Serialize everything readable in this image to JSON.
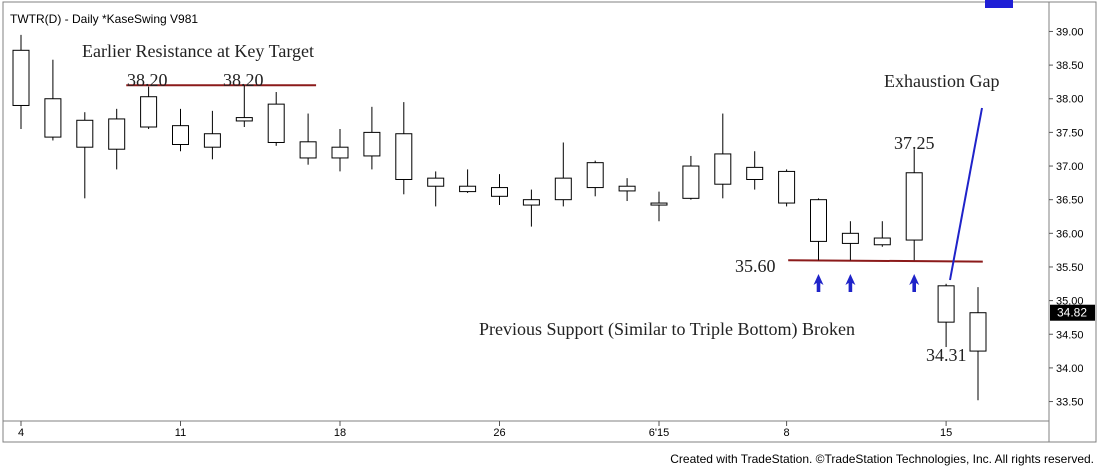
{
  "header": {
    "title": "TWTR(D) - Daily  *KaseSwing  V981"
  },
  "footer": {
    "credit": "Created with TradeStation. ©TradeStation Technologies, Inc. All rights reserved."
  },
  "chart_data": {
    "type": "candlestick",
    "ylim": [
      33.3,
      39.2
    ],
    "y_ticks": [
      "39.00",
      "38.50",
      "38.00",
      "37.50",
      "37.00",
      "36.50",
      "36.00",
      "35.50",
      "35.00",
      "34.50",
      "34.00",
      "33.50"
    ],
    "x_ticks": [
      "4",
      "11",
      "18",
      "26",
      "6'15",
      "8",
      "15"
    ],
    "x_tick_bars": [
      0,
      5,
      10,
      15,
      20,
      24,
      29
    ],
    "last_price": "34.82",
    "bars": [
      {
        "o": 37.9,
        "h": 38.95,
        "l": 37.55,
        "c": 38.72
      },
      {
        "o": 37.43,
        "h": 38.58,
        "l": 37.38,
        "c": 38.0
      },
      {
        "o": 37.28,
        "h": 37.8,
        "l": 36.52,
        "c": 37.68
      },
      {
        "o": 37.25,
        "h": 37.85,
        "l": 36.95,
        "c": 37.7
      },
      {
        "o": 37.58,
        "h": 38.18,
        "l": 37.55,
        "c": 38.03
      },
      {
        "o": 37.32,
        "h": 37.85,
        "l": 37.22,
        "c": 37.6
      },
      {
        "o": 37.28,
        "h": 37.82,
        "l": 37.1,
        "c": 37.48
      },
      {
        "o": 37.67,
        "h": 38.2,
        "l": 37.58,
        "c": 37.72
      },
      {
        "o": 37.35,
        "h": 38.1,
        "l": 37.3,
        "c": 37.92
      },
      {
        "o": 37.12,
        "h": 37.78,
        "l": 37.02,
        "c": 37.36
      },
      {
        "o": 37.12,
        "h": 37.55,
        "l": 36.92,
        "c": 37.28
      },
      {
        "o": 37.15,
        "h": 37.88,
        "l": 36.95,
        "c": 37.5
      },
      {
        "o": 36.8,
        "h": 37.95,
        "l": 36.58,
        "c": 37.48
      },
      {
        "o": 36.7,
        "h": 36.92,
        "l": 36.4,
        "c": 36.82
      },
      {
        "o": 36.62,
        "h": 36.95,
        "l": 36.6,
        "c": 36.7
      },
      {
        "o": 36.55,
        "h": 36.88,
        "l": 36.42,
        "c": 36.68
      },
      {
        "o": 36.42,
        "h": 36.65,
        "l": 36.1,
        "c": 36.5
      },
      {
        "o": 36.5,
        "h": 37.35,
        "l": 36.4,
        "c": 36.82
      },
      {
        "o": 36.68,
        "h": 37.08,
        "l": 36.55,
        "c": 37.05
      },
      {
        "o": 36.63,
        "h": 36.82,
        "l": 36.48,
        "c": 36.7
      },
      {
        "o": 36.42,
        "h": 36.62,
        "l": 36.18,
        "c": 36.45
      },
      {
        "o": 36.52,
        "h": 37.15,
        "l": 36.5,
        "c": 37.0
      },
      {
        "o": 36.73,
        "h": 37.78,
        "l": 36.52,
        "c": 37.18
      },
      {
        "o": 36.8,
        "h": 37.22,
        "l": 36.65,
        "c": 36.98
      },
      {
        "o": 36.45,
        "h": 36.95,
        "l": 36.4,
        "c": 36.92
      },
      {
        "o": 35.88,
        "h": 36.52,
        "l": 35.6,
        "c": 36.5
      },
      {
        "o": 35.85,
        "h": 36.18,
        "l": 35.6,
        "c": 36.0
      },
      {
        "o": 35.83,
        "h": 36.18,
        "l": 35.8,
        "c": 35.93
      },
      {
        "o": 35.9,
        "h": 37.25,
        "l": 35.6,
        "c": 36.9
      },
      {
        "o": 34.68,
        "h": 35.25,
        "l": 34.31,
        "c": 35.22
      },
      {
        "o": 34.25,
        "h": 35.2,
        "l": 33.52,
        "c": 34.82
      }
    ],
    "annotations": {
      "resistance_title": "Earlier Resistance at Key Target",
      "resistance_label_1": "38.20",
      "resistance_label_2": "38.20",
      "exhaustion_gap": "Exhaustion Gap",
      "high_label": "37.25",
      "support_label": "35.60",
      "support_broken": "Previous Support (Similar to Triple Bottom) Broken",
      "low_label": "34.31"
    },
    "resistance_level": 38.2,
    "support_level": 35.6,
    "arrow_bars": [
      25,
      26,
      28
    ],
    "colors": {
      "bear_fill": "#000000",
      "bull_fill": "#ffffff",
      "level_line": "#8b1a1a",
      "arrow": "#1f23c9",
      "gap_line": "#1f23c9",
      "price_box": "#000000",
      "accent": "#1f1fd6"
    }
  }
}
